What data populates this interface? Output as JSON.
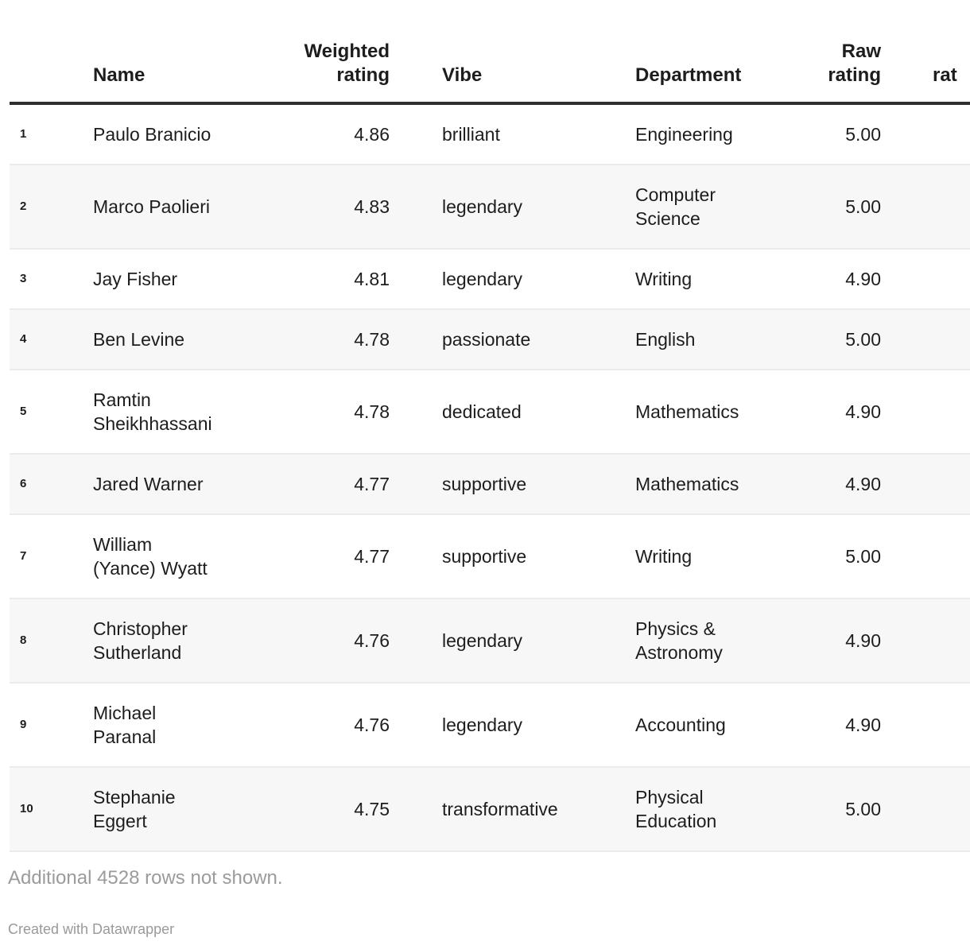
{
  "chart_data": {
    "type": "table",
    "columns": [
      {
        "key": "rank",
        "label": "",
        "align": "left"
      },
      {
        "key": "name",
        "label": "Name",
        "align": "left"
      },
      {
        "key": "weighted",
        "label": "Weighted\nrating",
        "align": "right"
      },
      {
        "key": "vibe",
        "label": "Vibe",
        "align": "left"
      },
      {
        "key": "department",
        "label": "Department",
        "align": "left"
      },
      {
        "key": "raw",
        "label": "Raw\nrating",
        "align": "right"
      },
      {
        "key": "extra",
        "label": "rat",
        "align": "left"
      }
    ],
    "rows": [
      {
        "rank": "1",
        "name": "Paulo Branicio",
        "weighted": "4.86",
        "vibe": "brilliant",
        "department": "Engineering",
        "raw": "5.00",
        "extra": ""
      },
      {
        "rank": "2",
        "name": "Marco Paolieri",
        "weighted": "4.83",
        "vibe": "legendary",
        "department": "Computer\nScience",
        "raw": "5.00",
        "extra": ""
      },
      {
        "rank": "3",
        "name": "Jay Fisher",
        "weighted": "4.81",
        "vibe": "legendary",
        "department": "Writing",
        "raw": "4.90",
        "extra": ""
      },
      {
        "rank": "4",
        "name": "Ben Levine",
        "weighted": "4.78",
        "vibe": "passionate",
        "department": "English",
        "raw": "5.00",
        "extra": ""
      },
      {
        "rank": "5",
        "name": "Ramtin\nSheikhhassani",
        "weighted": "4.78",
        "vibe": "dedicated",
        "department": "Mathematics",
        "raw": "4.90",
        "extra": ""
      },
      {
        "rank": "6",
        "name": "Jared Warner",
        "weighted": "4.77",
        "vibe": "supportive",
        "department": "Mathematics",
        "raw": "4.90",
        "extra": ""
      },
      {
        "rank": "7",
        "name": "William\n(Yance) Wyatt",
        "weighted": "4.77",
        "vibe": "supportive",
        "department": "Writing",
        "raw": "5.00",
        "extra": ""
      },
      {
        "rank": "8",
        "name": "Christopher\nSutherland",
        "weighted": "4.76",
        "vibe": "legendary",
        "department": "Physics &\nAstronomy",
        "raw": "4.90",
        "extra": ""
      },
      {
        "rank": "9",
        "name": "Michael\nParanal",
        "weighted": "4.76",
        "vibe": "legendary",
        "department": "Accounting",
        "raw": "4.90",
        "extra": ""
      },
      {
        "rank": "10",
        "name": "Stephanie\nEggert",
        "weighted": "4.75",
        "vibe": "transformative",
        "department": "Physical\nEducation",
        "raw": "5.00",
        "extra": ""
      }
    ]
  },
  "footer": {
    "note": "Additional 4528 rows not shown.",
    "attribution": "Created with Datawrapper"
  },
  "colors": {
    "text": "#1d1d1d",
    "header_rule": "#2e2e2e",
    "row_alt_bg": "#f7f7f7",
    "row_border": "#ebebeb",
    "muted_text": "#9b9b9b",
    "background": "#ffffff"
  }
}
